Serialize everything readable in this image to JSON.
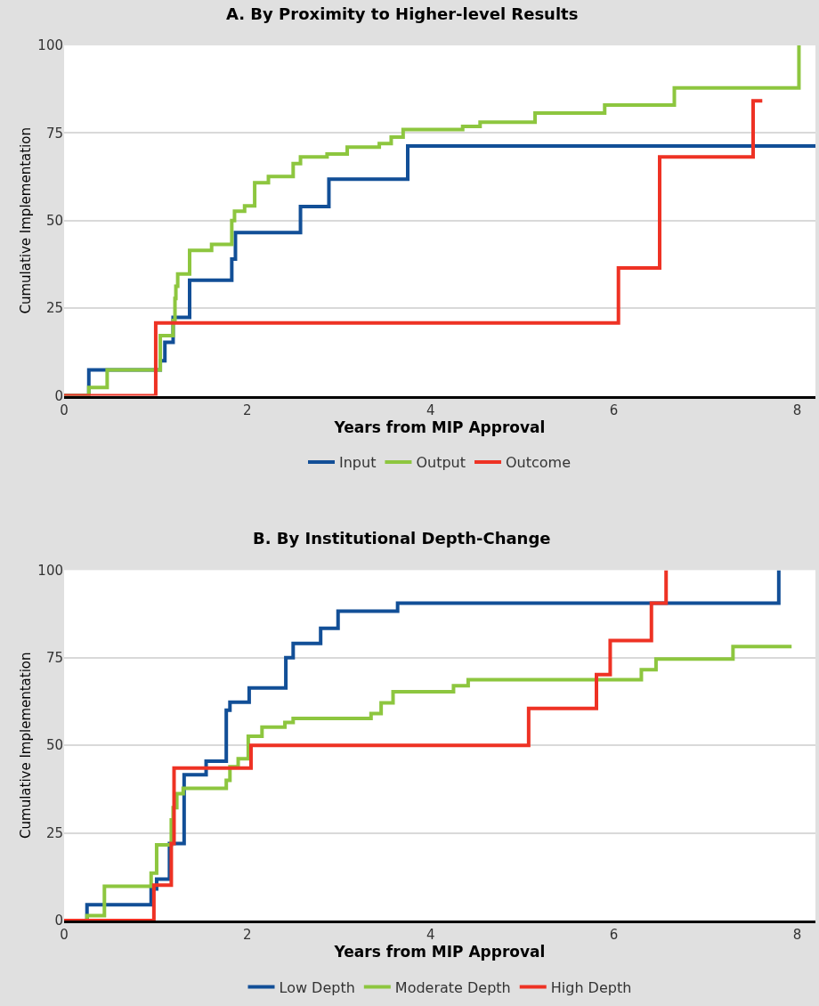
{
  "chart_data": [
    {
      "type": "step",
      "title": "A. By Proximity to Higher-level Results",
      "xlabel": "Years from MIP Approval",
      "ylabel": "Cumulative Implementation",
      "xlim": [
        0,
        8.2
      ],
      "xticks": [
        0,
        2,
        4,
        6,
        8
      ],
      "ylim": [
        0,
        100
      ],
      "yticks": [
        0,
        25,
        50,
        75,
        100
      ],
      "grid": "y",
      "legend": "bottom",
      "line_style": "solid",
      "marker": "none",
      "series": [
        {
          "name": "Input",
          "color": "#124f97",
          "x": [
            0,
            0.27,
            1.05,
            1.1,
            1.19,
            1.37,
            1.83,
            1.87,
            2.58,
            2.89,
            3.75,
            8.2
          ],
          "values": [
            0,
            7.4,
            10,
            15.3,
            22.4,
            33,
            39,
            46.6,
            54,
            61.8,
            71.3,
            71.3
          ]
        },
        {
          "name": "Output",
          "color": "#8dc63f",
          "x": [
            0,
            0.27,
            0.47,
            1.05,
            1.19,
            1.21,
            1.22,
            1.24,
            1.37,
            1.61,
            1.83,
            1.86,
            1.97,
            2.08,
            2.23,
            2.5,
            2.58,
            2.87,
            3.09,
            3.44,
            3.57,
            3.7,
            4.35,
            4.54,
            5.14,
            5.9,
            6.66,
            8.02
          ],
          "values": [
            0,
            2.4,
            7.4,
            17.2,
            21.5,
            27.8,
            31.3,
            34.8,
            41.5,
            43.2,
            50,
            52.7,
            54.2,
            60.8,
            62.6,
            66.3,
            68.2,
            69,
            71,
            72,
            73.8,
            76,
            76.9,
            78.1,
            80.7,
            83,
            87.9,
            100
          ]
        },
        {
          "name": "Outcome",
          "color": "#ee3224",
          "x": [
            0,
            1.0,
            6.05,
            6.5,
            7.52,
            7.62
          ],
          "values": [
            0,
            20.8,
            36.5,
            68.2,
            84.2,
            84.2
          ]
        }
      ]
    },
    {
      "type": "step",
      "title": "B. By Institutional Depth-Change",
      "xlabel": "Years from MIP Approval",
      "ylabel": "Cumulative Implementation",
      "xlim": [
        0,
        8.2
      ],
      "xticks": [
        0,
        2,
        4,
        6,
        8
      ],
      "ylim": [
        0,
        100
      ],
      "yticks": [
        0,
        25,
        50,
        75,
        100
      ],
      "grid": "y",
      "legend": "bottom",
      "line_style": "solid",
      "marker": "none",
      "series": [
        {
          "name": "Low Depth",
          "color": "#124f97",
          "x": [
            0,
            0.25,
            0.95,
            1.01,
            1.15,
            1.31,
            1.55,
            1.77,
            1.81,
            2.02,
            2.42,
            2.5,
            2.8,
            2.99,
            3.64,
            7.8
          ],
          "values": [
            0,
            4.5,
            9,
            11.8,
            22,
            41.6,
            45.5,
            60,
            62.3,
            66.4,
            75,
            79.1,
            83.4,
            88.3,
            90.6,
            100
          ]
        },
        {
          "name": "Moderate Depth",
          "color": "#8dc63f",
          "x": [
            0,
            0.25,
            0.44,
            0.95,
            1.01,
            1.17,
            1.19,
            1.23,
            1.3,
            1.77,
            1.81,
            1.9,
            2.01,
            2.16,
            2.41,
            2.5,
            3.35,
            3.46,
            3.59,
            4.25,
            4.41,
            6.3,
            6.46,
            7.3,
            7.94
          ],
          "values": [
            0,
            1.4,
            9.8,
            13.5,
            21.6,
            28.7,
            32.2,
            36.2,
            37.7,
            40,
            43.9,
            46.2,
            52.6,
            55.2,
            56.5,
            57.7,
            59.1,
            62.1,
            65.3,
            67,
            68.7,
            71.6,
            74.6,
            78.2,
            78.2
          ]
        },
        {
          "name": "High Depth",
          "color": "#ee3224",
          "x": [
            0,
            0.98,
            1.17,
            1.2,
            2.04,
            5.07,
            5.81,
            5.96,
            6.41,
            6.57
          ],
          "values": [
            0,
            10.1,
            22,
            43.5,
            50,
            60.5,
            70.2,
            79.9,
            90.6,
            100
          ]
        }
      ]
    }
  ]
}
